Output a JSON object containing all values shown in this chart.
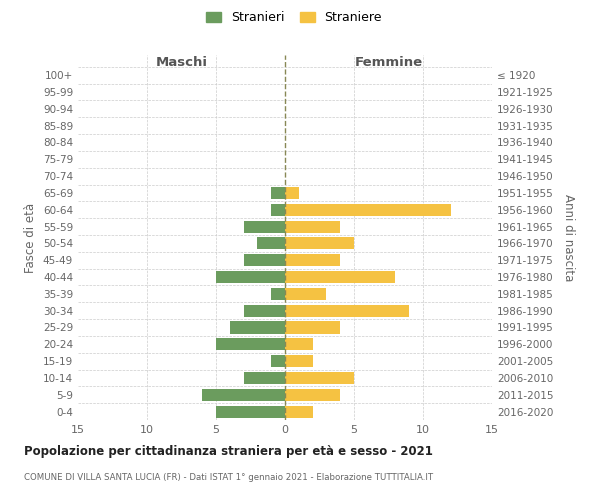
{
  "age_groups": [
    "100+",
    "95-99",
    "90-94",
    "85-89",
    "80-84",
    "75-79",
    "70-74",
    "65-69",
    "60-64",
    "55-59",
    "50-54",
    "45-49",
    "40-44",
    "35-39",
    "30-34",
    "25-29",
    "20-24",
    "15-19",
    "10-14",
    "5-9",
    "0-4"
  ],
  "birth_years": [
    "≤ 1920",
    "1921-1925",
    "1926-1930",
    "1931-1935",
    "1936-1940",
    "1941-1945",
    "1946-1950",
    "1951-1955",
    "1956-1960",
    "1961-1965",
    "1966-1970",
    "1971-1975",
    "1976-1980",
    "1981-1985",
    "1986-1990",
    "1991-1995",
    "1996-2000",
    "2001-2005",
    "2006-2010",
    "2011-2015",
    "2016-2020"
  ],
  "maschi": [
    0,
    0,
    0,
    0,
    0,
    0,
    0,
    1,
    1,
    3,
    2,
    3,
    5,
    1,
    3,
    4,
    5,
    1,
    3,
    6,
    5
  ],
  "femmine": [
    0,
    0,
    0,
    0,
    0,
    0,
    0,
    1,
    12,
    4,
    5,
    4,
    8,
    3,
    9,
    4,
    2,
    2,
    5,
    4,
    2
  ],
  "color_maschi": "#6b9c5e",
  "color_femmine": "#f5c242",
  "title": "Popolazione per cittadinanza straniera per età e sesso - 2021",
  "subtitle": "COMUNE DI VILLA SANTA LUCIA (FR) - Dati ISTAT 1° gennaio 2021 - Elaborazione TUTTITALIA.IT",
  "ylabel_left": "Fasce di età",
  "ylabel_right": "Anni di nascita",
  "xlabel_maschi": "Maschi",
  "xlabel_femmine": "Femmine",
  "legend_maschi": "Stranieri",
  "legend_femmine": "Straniere",
  "xlim": 15,
  "background_color": "#ffffff",
  "grid_color": "#cccccc"
}
